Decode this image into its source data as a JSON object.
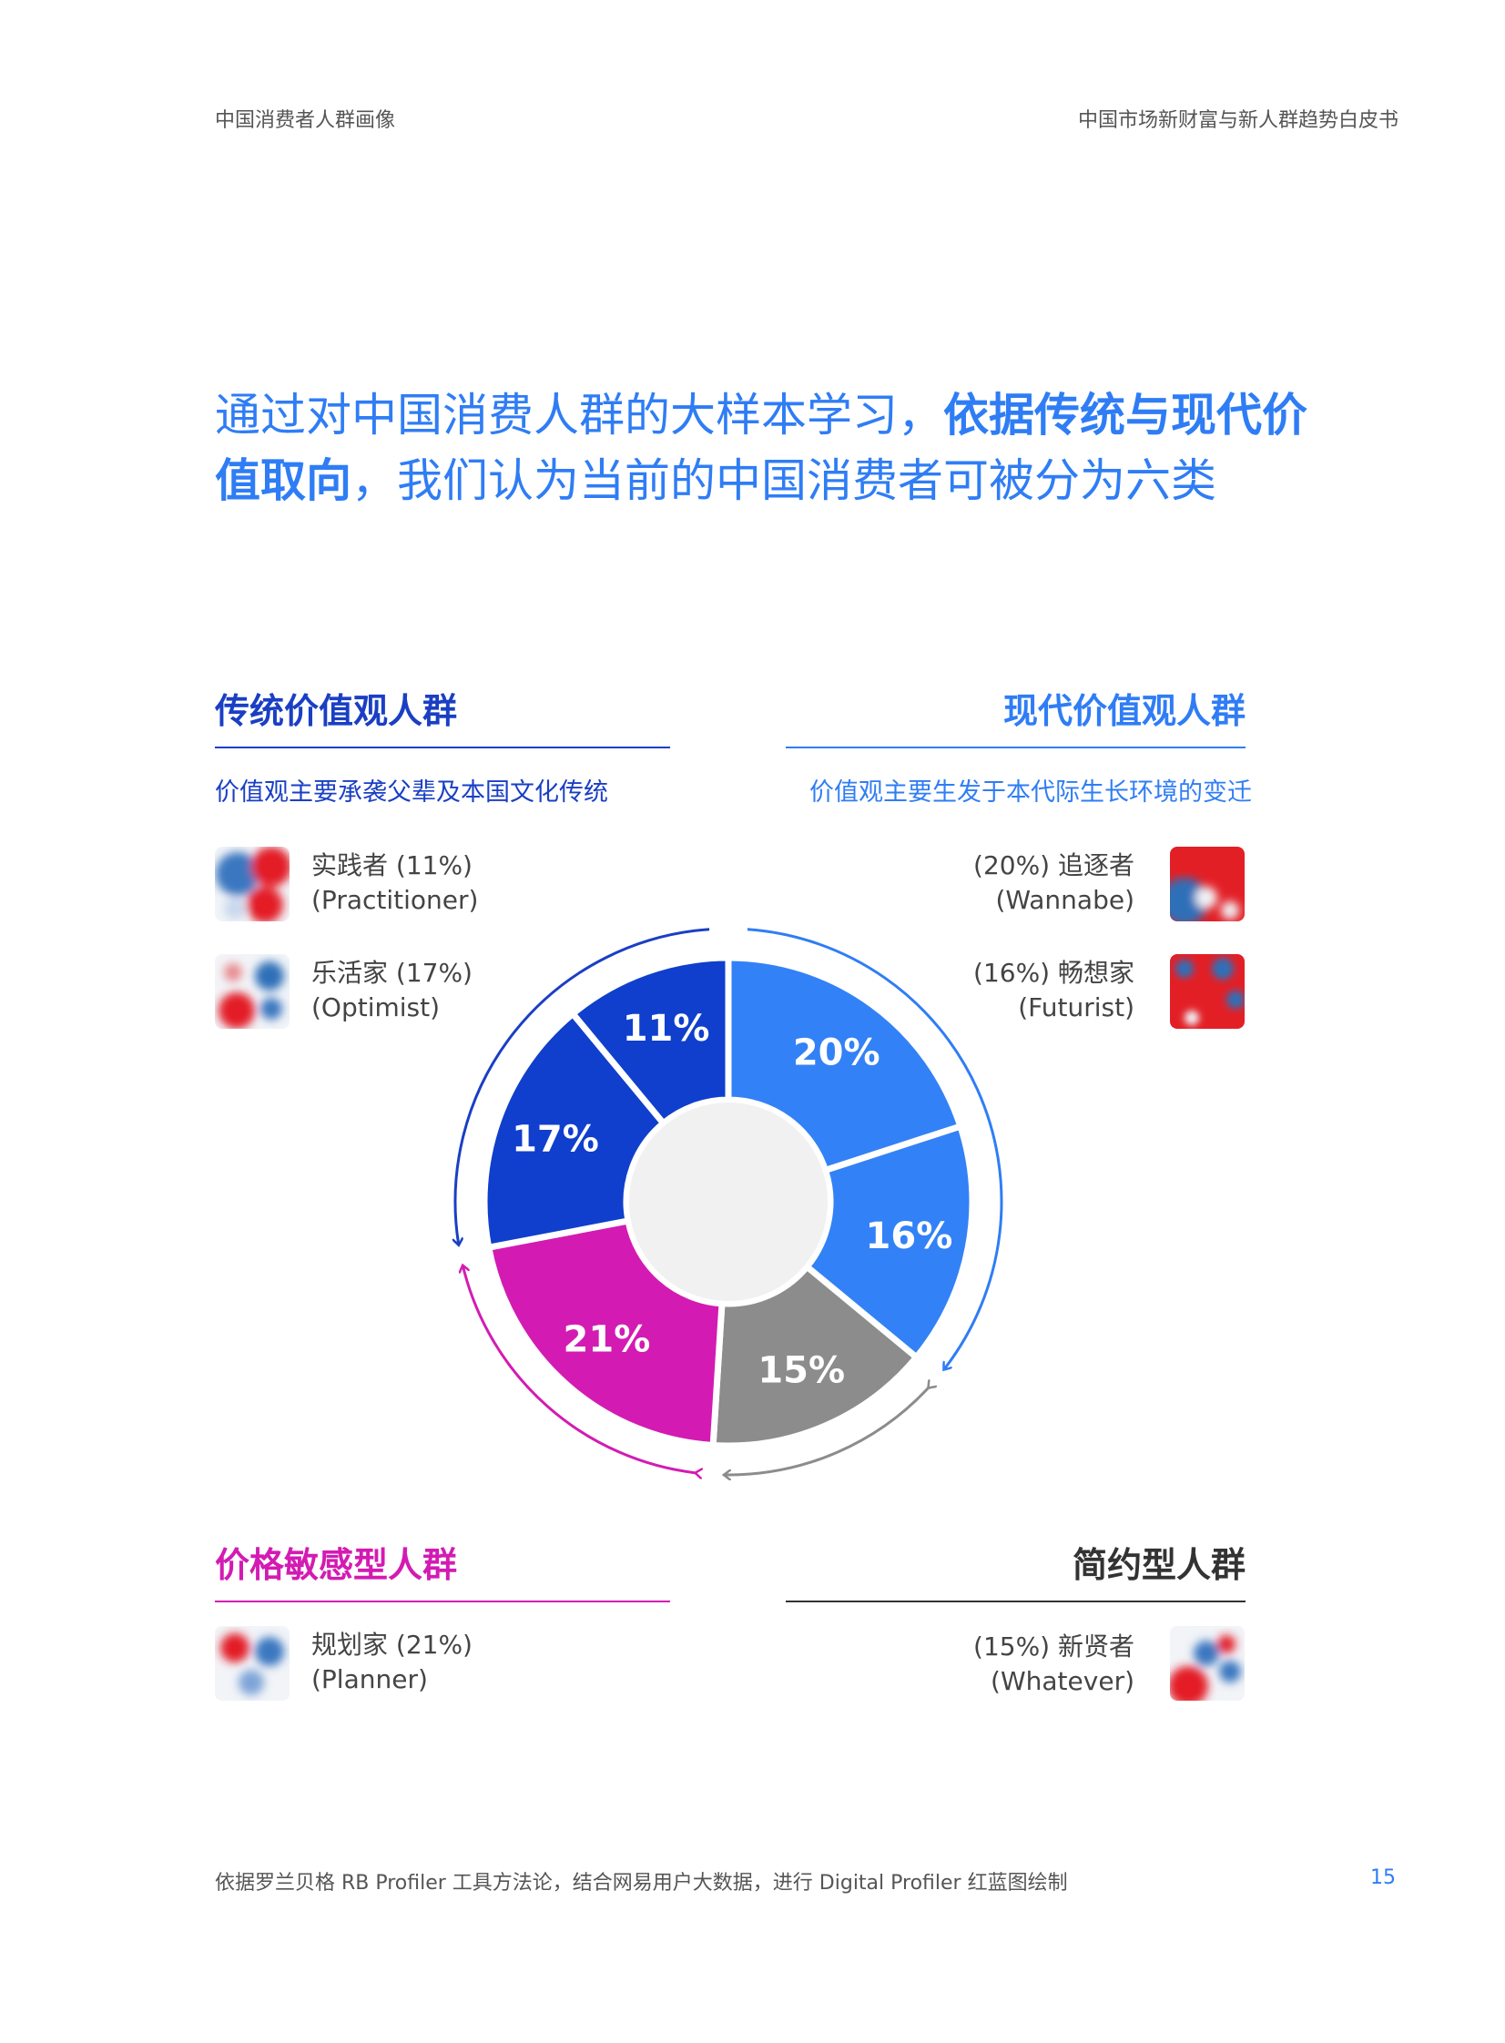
{
  "header": {
    "left": "中国消费者人群画像",
    "right": "中国市场新财富与新人群趋势白皮书"
  },
  "headline": {
    "line1_normal": "通过对中国消费人群的大样本学习，",
    "line1_bold": "依据传统与现代价",
    "line2_bold": "值取向",
    "line2_normal": "，我们认为当前的中国消费者可被分为六类"
  },
  "groups": {
    "traditional": {
      "title": "传统价值观人群",
      "desc": "价值观主要承袭父辈及本国文化传统",
      "color": "#1a3fc4"
    },
    "modern": {
      "title": "现代价值观人群",
      "desc": "价值观主要生发于本代际生长环境的变迁",
      "color": "#2f7df5"
    },
    "price": {
      "title": "价格敏感型人群",
      "color": "#d31bb3"
    },
    "simple": {
      "title": "简约型人群",
      "color": "#333333"
    }
  },
  "personas": {
    "practitioner": {
      "line1": "实践者 (11%)",
      "line2": "(Practitioner)"
    },
    "optimist": {
      "line1": "乐活家 (17%)",
      "line2": "(Optimist)"
    },
    "wannabe": {
      "line1": "(20%) 追逐者",
      "line2": "(Wannabe)"
    },
    "futurist": {
      "line1": "(16%) 畅想家",
      "line2": "(Futurist)"
    },
    "planner": {
      "line1": "规划家 (21%)",
      "line2": "(Planner)"
    },
    "whatever": {
      "line1": "(15%) 新贤者",
      "line2": "(Whatever)"
    }
  },
  "chart_data": {
    "type": "pie",
    "donut": true,
    "categories": [
      "Wannabe",
      "Futurist",
      "Whatever",
      "Planner",
      "Optimist",
      "Practitioner"
    ],
    "values": [
      20,
      16,
      15,
      21,
      17,
      11
    ],
    "labels": [
      "20%",
      "16%",
      "15%",
      "21%",
      "17%",
      "11%"
    ],
    "colors": [
      "#3381f6",
      "#3381f6",
      "#8c8c8c",
      "#d31bb3",
      "#0f3fcc",
      "#0f3fcc"
    ]
  },
  "footer": {
    "note": "依据罗兰贝格 RB Profiler 工具方法论，结合网易用户大数据，进行 Digital Profiler 红蓝图绘制",
    "page": "15"
  }
}
